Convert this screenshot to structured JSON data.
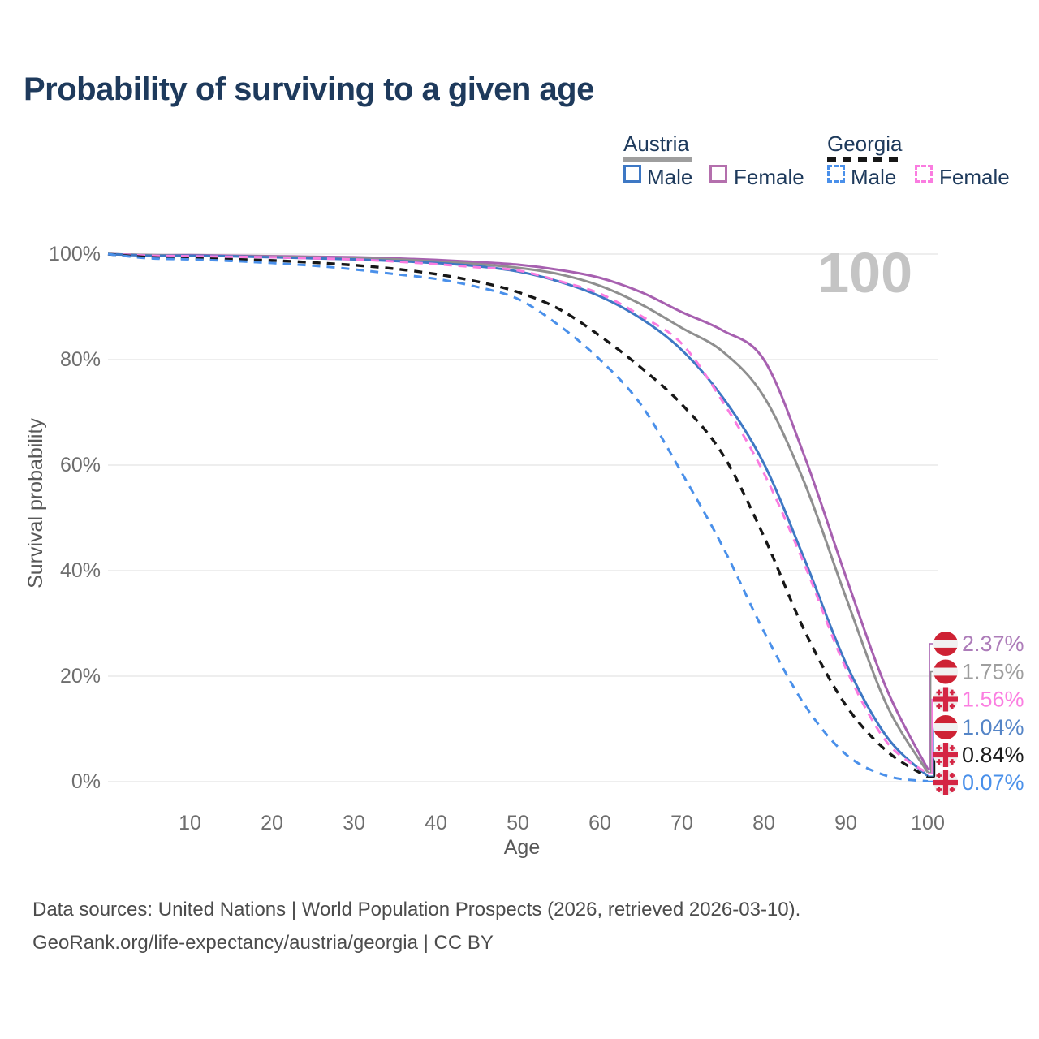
{
  "title": "Probability of surviving to a given age",
  "age_indicator": "100",
  "legend": {
    "groups": [
      {
        "label": "Austria",
        "line_style": "solid",
        "line_color": "#9e9e9e",
        "items": [
          {
            "label": "Male",
            "color": "#3e78c4",
            "box_style": "solid"
          },
          {
            "label": "Female",
            "color": "#b46fad",
            "box_style": "solid"
          }
        ]
      },
      {
        "label": "Georgia",
        "line_style": "dashed",
        "line_color": "#171717",
        "items": [
          {
            "label": "Male",
            "color": "#4a90ea",
            "box_style": "dashed"
          },
          {
            "label": "Female",
            "color": "#fa7ce0",
            "box_style": "dashed"
          }
        ]
      }
    ]
  },
  "chart_data": {
    "type": "line",
    "title": "Probability of surviving to a given age",
    "xlabel": "Age",
    "ylabel": "Survival probability",
    "xlim": [
      0,
      100
    ],
    "ylim": [
      0,
      100
    ],
    "grid": "horizontal",
    "legend_position": "top-right",
    "x_ticks": [
      10,
      20,
      30,
      40,
      50,
      60,
      70,
      80,
      90,
      100
    ],
    "y_ticks": [
      {
        "value": 100,
        "label": "100%"
      },
      {
        "value": 80,
        "label": "80%"
      },
      {
        "value": 60,
        "label": "60%"
      },
      {
        "value": 40,
        "label": "40%"
      },
      {
        "value": 20,
        "label": "20%"
      },
      {
        "value": 0,
        "label": "0%"
      }
    ],
    "x": [
      0,
      5,
      10,
      15,
      20,
      25,
      30,
      35,
      40,
      45,
      50,
      55,
      60,
      65,
      70,
      75,
      80,
      85,
      90,
      95,
      100
    ],
    "series": [
      {
        "name": "Austria Female",
        "country": "Austria",
        "sex": "Female",
        "color": "#a760b0",
        "dashed": false,
        "end_label": "2.37%",
        "end_label_color": "#ad7cb9",
        "flag": "austria",
        "values": [
          100,
          99.8,
          99.8,
          99.7,
          99.6,
          99.5,
          99.4,
          99.2,
          98.9,
          98.5,
          98.0,
          97.0,
          95.5,
          92.8,
          89.0,
          85.5,
          80.0,
          61.5,
          38.9,
          17.5,
          2.37
        ]
      },
      {
        "name": "Austria Total",
        "country": "Austria",
        "sex": "All",
        "color": "#8f8f8f",
        "dashed": false,
        "end_label": "1.75%",
        "end_label_color": "#9e9e9e",
        "flag": "austria",
        "values": [
          100,
          99.8,
          99.7,
          99.6,
          99.5,
          99.4,
          99.2,
          99.0,
          98.6,
          98.1,
          97.4,
          96.2,
          94.0,
          90.5,
          86.0,
          81.5,
          73.0,
          56.5,
          35.0,
          14.5,
          1.75
        ]
      },
      {
        "name": "Austria Male",
        "country": "Austria",
        "sex": "Male",
        "color": "#3e78c4",
        "dashed": false,
        "end_label": "1.04%",
        "end_label_color": "#5585c7",
        "flag": "austria",
        "values": [
          100,
          99.7,
          99.7,
          99.6,
          99.4,
          99.2,
          99.0,
          98.7,
          98.3,
          97.7,
          96.7,
          94.8,
          92.0,
          87.8,
          81.8,
          72.8,
          60.3,
          42.0,
          22.5,
          8.5,
          1.04
        ]
      },
      {
        "name": "Georgia Female",
        "country": "Georgia",
        "sex": "Female",
        "color": "#fa7ce0",
        "dashed": true,
        "end_label": "1.56%",
        "end_label_color": "#fb7ee1",
        "flag": "georgia",
        "values": [
          100,
          99.7,
          99.6,
          99.5,
          99.4,
          99.2,
          99.0,
          98.6,
          98.1,
          97.5,
          96.9,
          94.9,
          92.5,
          88.3,
          83.0,
          72.0,
          58.5,
          41.0,
          21.5,
          7.5,
          1.56
        ]
      },
      {
        "name": "Georgia Total",
        "country": "Georgia",
        "sex": "All",
        "color": "#171717",
        "dashed": true,
        "end_label": "0.84%",
        "end_label_color": "#1c1c1c",
        "flag": "georgia",
        "values": [
          100,
          99.4,
          99.2,
          99.0,
          98.8,
          98.4,
          97.9,
          97.2,
          96.2,
          94.8,
          92.8,
          89.6,
          84.5,
          78.5,
          71.5,
          62.0,
          46.5,
          28.5,
          14.5,
          5.8,
          0.84
        ]
      },
      {
        "name": "Georgia Male",
        "country": "Georgia",
        "sex": "Male",
        "color": "#4a90ea",
        "dashed": true,
        "end_label": "0.07%",
        "end_label_color": "#4a90ea",
        "flag": "georgia",
        "values": [
          100,
          99.2,
          99.0,
          98.7,
          98.3,
          97.8,
          97.1,
          96.2,
          95.3,
          93.8,
          91.5,
          86.5,
          80.0,
          71.5,
          58.5,
          44.5,
          28.5,
          14.5,
          5.2,
          1.1,
          0.07
        ]
      }
    ]
  },
  "footer": {
    "line1": "Data sources: United Nations | World Population Prospects (2026, retrieved 2026-03-10).",
    "line2": "GeoRank.org/life-expectancy/austria/georgia | CC BY"
  },
  "colors": {
    "title": "#1e3a5c",
    "tick": "#6e6e6e",
    "axis_title": "#585858",
    "grid": "#e8e8e8",
    "watermark": "#c4c4c4",
    "footer": "#4c4c4c",
    "austria_flag_red": "#ce2234",
    "georgia_flag_red": "#d42544"
  }
}
